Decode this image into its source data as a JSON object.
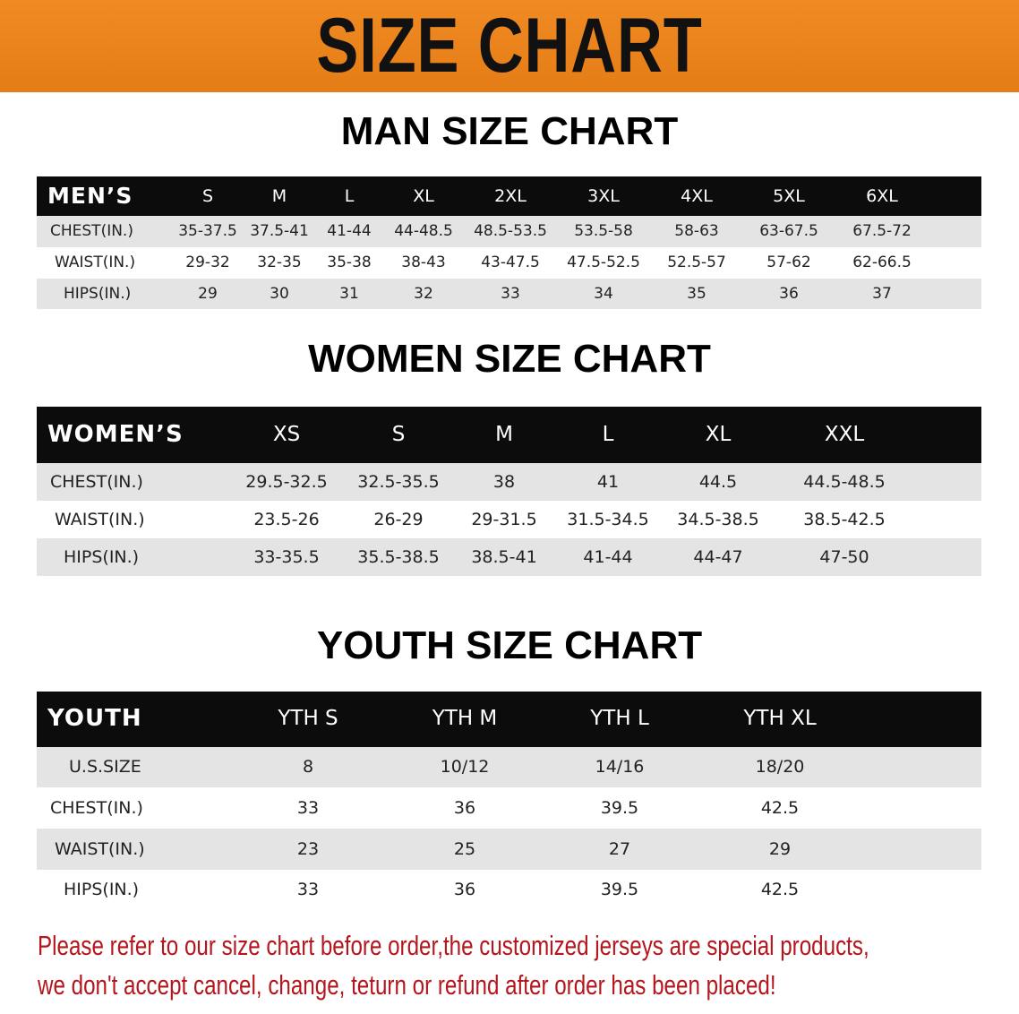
{
  "banner": {
    "title": "SIZE CHART",
    "color": "#ec841c"
  },
  "men": {
    "title": "MAN SIZE CHART",
    "header_label": "MEN’S",
    "sizes": [
      "S",
      "M",
      "L",
      "XL",
      "2XL",
      "3XL",
      "4XL",
      "5XL",
      "6XL"
    ],
    "rows": [
      {
        "label": "CHEST(IN.)",
        "values": [
          "35-37.5",
          "37.5-41",
          "41-44",
          "44-48.5",
          "48.5-53.5",
          "53.5-58",
          "58-63",
          "63-67.5",
          "67.5-72"
        ]
      },
      {
        "label": "WAIST(IN.)",
        "values": [
          "29-32",
          "32-35",
          "35-38",
          "38-43",
          "43-47.5",
          "47.5-52.5",
          "52.5-57",
          "57-62",
          "62-66.5"
        ]
      },
      {
        "label": "HIPS(IN.)",
        "values": [
          "29",
          "30",
          "31",
          "32",
          "33",
          "34",
          "35",
          "36",
          "37"
        ]
      }
    ]
  },
  "women": {
    "title": "WOMEN SIZE CHART",
    "header_label": "WOMEN’S",
    "sizes": [
      "XS",
      "S",
      "M",
      "L",
      "XL",
      "XXL"
    ],
    "rows": [
      {
        "label": "CHEST(IN.)",
        "values": [
          "29.5-32.5",
          "32.5-35.5",
          "38",
          "41",
          "44.5",
          "44.5-48.5"
        ]
      },
      {
        "label": "WAIST(IN.)",
        "values": [
          "23.5-26",
          "26-29",
          "29-31.5",
          "31.5-34.5",
          "34.5-38.5",
          "38.5-42.5"
        ]
      },
      {
        "label": "HIPS(IN.)",
        "values": [
          "33-35.5",
          "35.5-38.5",
          "38.5-41",
          "41-44",
          "44-47",
          "47-50"
        ]
      }
    ]
  },
  "youth": {
    "title": "YOUTH SIZE CHART",
    "header_label": "YOUTH",
    "sizes": [
      "YTH S",
      "YTH M",
      "YTH L",
      "YTH XL"
    ],
    "rows": [
      {
        "label": "U.S.SIZE",
        "values": [
          "8",
          "10/12",
          "14/16",
          "18/20"
        ]
      },
      {
        "label": "CHEST(IN.)",
        "values": [
          "33",
          "36",
          "39.5",
          "42.5"
        ]
      },
      {
        "label": "WAIST(IN.)",
        "values": [
          "23",
          "25",
          "27",
          "29"
        ]
      },
      {
        "label": "HIPS(IN.)",
        "values": [
          "33",
          "36",
          "39.5",
          "42.5"
        ]
      }
    ]
  },
  "notice": {
    "line1": "Please refer to our size chart before order,the customized jerseys are special products,",
    "line2": "we don't accept cancel, change, teturn or refund after order has been placed!",
    "color": "#b3161c"
  }
}
